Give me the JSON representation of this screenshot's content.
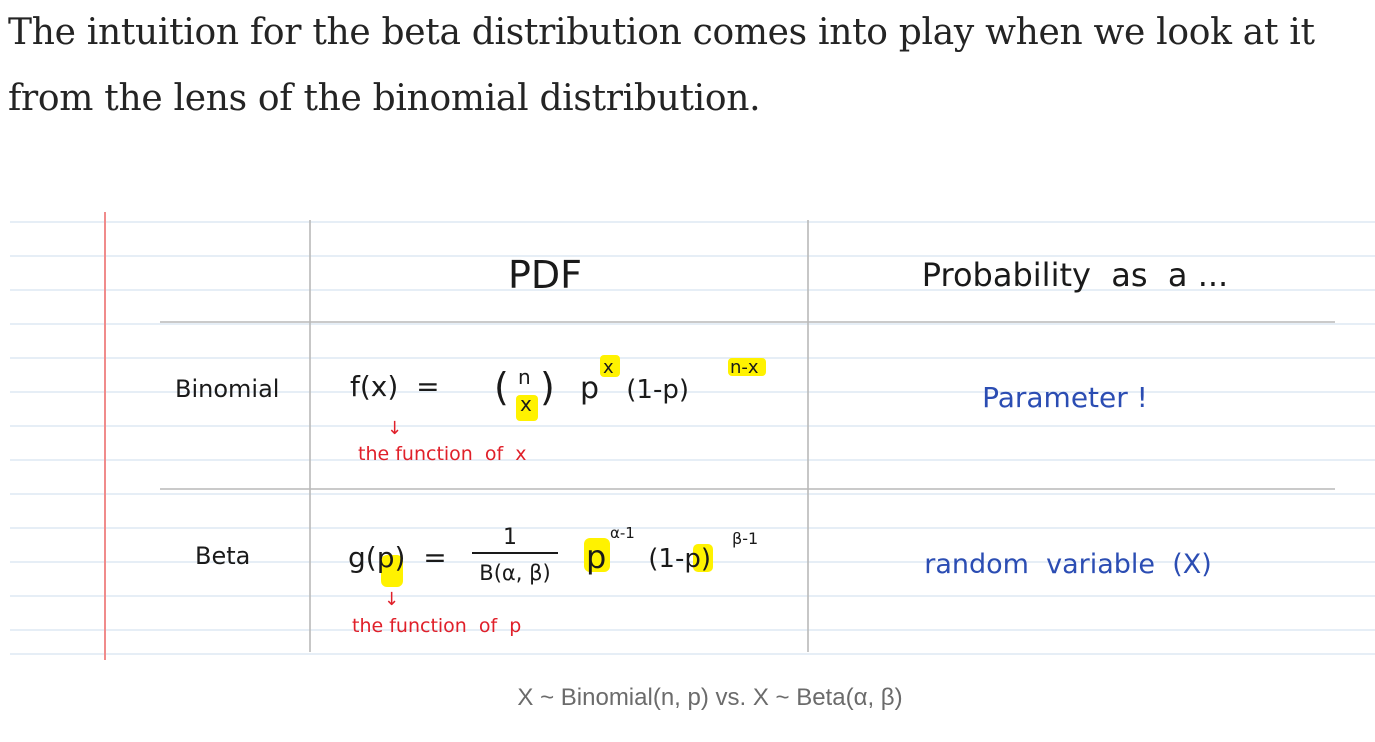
{
  "article": {
    "paragraph": "The intuition for the beta distribution comes into play when we look at it from the lens of the binomial distribution."
  },
  "figure": {
    "headers": {
      "pdf": "PDF",
      "probability_as": "Probability  as  a ..."
    },
    "rows": [
      {
        "label": "Binomial",
        "pdf_lhs": "f(x)  =  ",
        "pdf_choose_top": "n",
        "pdf_choose_bottom": "x",
        "pdf_p": "p",
        "pdf_p_exp": "x",
        "pdf_one_minus": " (1-p)",
        "pdf_one_minus_exp": "n-x",
        "note": "the function  of  x",
        "probability_as": "Parameter !"
      },
      {
        "label": "Beta",
        "pdf_lhs": "g(p)  =",
        "frac_num": "1",
        "frac_den": "B(α, β)",
        "pdf_p": "p",
        "pdf_p_exp": "α-1",
        "pdf_one_minus": " (1-p)",
        "pdf_one_minus_exp": "β-1",
        "note": "the function  of  p",
        "probability_as": "random  variable  (X)"
      }
    ],
    "colors": {
      "ruled_line": "#d8e4f0",
      "margin_line": "#f08b8b",
      "grid_line": "#b9b9b9",
      "ink": "#1a1a1a",
      "red_ink": "#e0202a",
      "blue_ink": "#2b4db3",
      "highlight": "#fff200"
    },
    "caption": "X ~ Binomial(n, p) vs. X ~ Beta(α, β)"
  }
}
